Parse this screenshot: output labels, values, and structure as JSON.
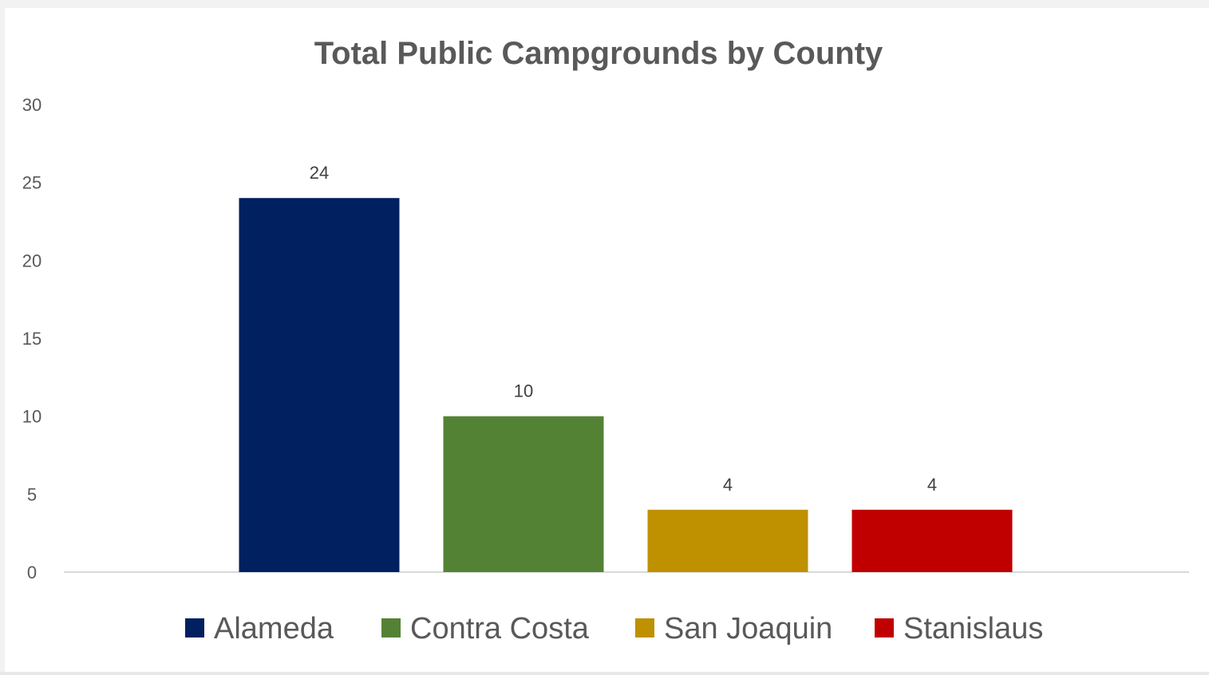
{
  "chart_data": {
    "type": "bar",
    "title": "Total Public Campgrounds by County",
    "xlabel": "",
    "ylabel": "",
    "categories": [
      "Alameda",
      "Contra Costa",
      "San Joaquin",
      "Stanislaus"
    ],
    "values": [
      24,
      10,
      4,
      4
    ],
    "data_labels": [
      "24",
      "10",
      "4",
      "4"
    ],
    "colors": [
      "#002060",
      "#548235",
      "#BF9000",
      "#C00000"
    ],
    "ylim": [
      0,
      30
    ],
    "yticks": [
      0,
      5,
      10,
      15,
      20,
      25,
      30
    ],
    "ytick_labels": [
      "0",
      "5",
      "10",
      "15",
      "20",
      "25",
      "30"
    ],
    "grid": false,
    "legend_position": "bottom",
    "legend": [
      "Alameda",
      "Contra Costa",
      "San Joaquin",
      "Stanislaus"
    ]
  }
}
